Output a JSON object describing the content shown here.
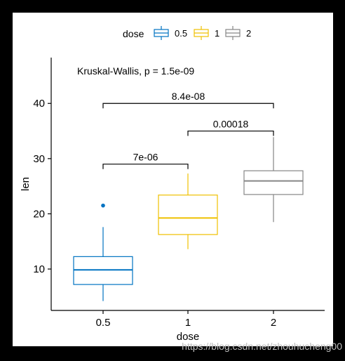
{
  "chart_data": {
    "type": "boxplot",
    "title": "",
    "xlabel": "dose",
    "ylabel": "len",
    "x_categories": [
      "0.5",
      "1",
      "2"
    ],
    "y_ticks": [
      10,
      20,
      30,
      40
    ],
    "ylim": [
      2.5,
      48.3
    ],
    "grid": false,
    "legend": {
      "title": "dose",
      "placement": "top",
      "entries": [
        {
          "label": "0.5",
          "color": "#0073C2"
        },
        {
          "label": "1",
          "color": "#EFC000"
        },
        {
          "label": "2",
          "color": "#868686"
        }
      ]
    },
    "series": [
      {
        "name": "0.5",
        "color": "#0073C2",
        "whisker_low": 4.2,
        "q1": 7.2,
        "median": 9.85,
        "q3": 12.25,
        "whisker_high": 17.6,
        "outliers": [
          21.5
        ]
      },
      {
        "name": "1",
        "color": "#EFC000",
        "whisker_low": 13.6,
        "q1": 16.25,
        "median": 19.25,
        "q3": 23.4,
        "whisker_high": 27.3,
        "outliers": []
      },
      {
        "name": "2",
        "color": "#868686",
        "whisker_low": 18.5,
        "q1": 23.5,
        "median": 25.95,
        "q3": 27.8,
        "whisker_high": 33.9,
        "outliers": []
      }
    ],
    "annotations": {
      "global_test": "Kruskal-Wallis, p = 1.5e-09",
      "comparisons": [
        {
          "from": "0.5",
          "to": "1",
          "y": 29,
          "label": "7e-06"
        },
        {
          "from": "1",
          "to": "2",
          "y": 35,
          "label": "0.00018"
        },
        {
          "from": "0.5",
          "to": "2",
          "y": 40,
          "label": "8.4e-08"
        }
      ]
    }
  },
  "watermark": "https://blog.csdn.net/zhouhucheng00"
}
